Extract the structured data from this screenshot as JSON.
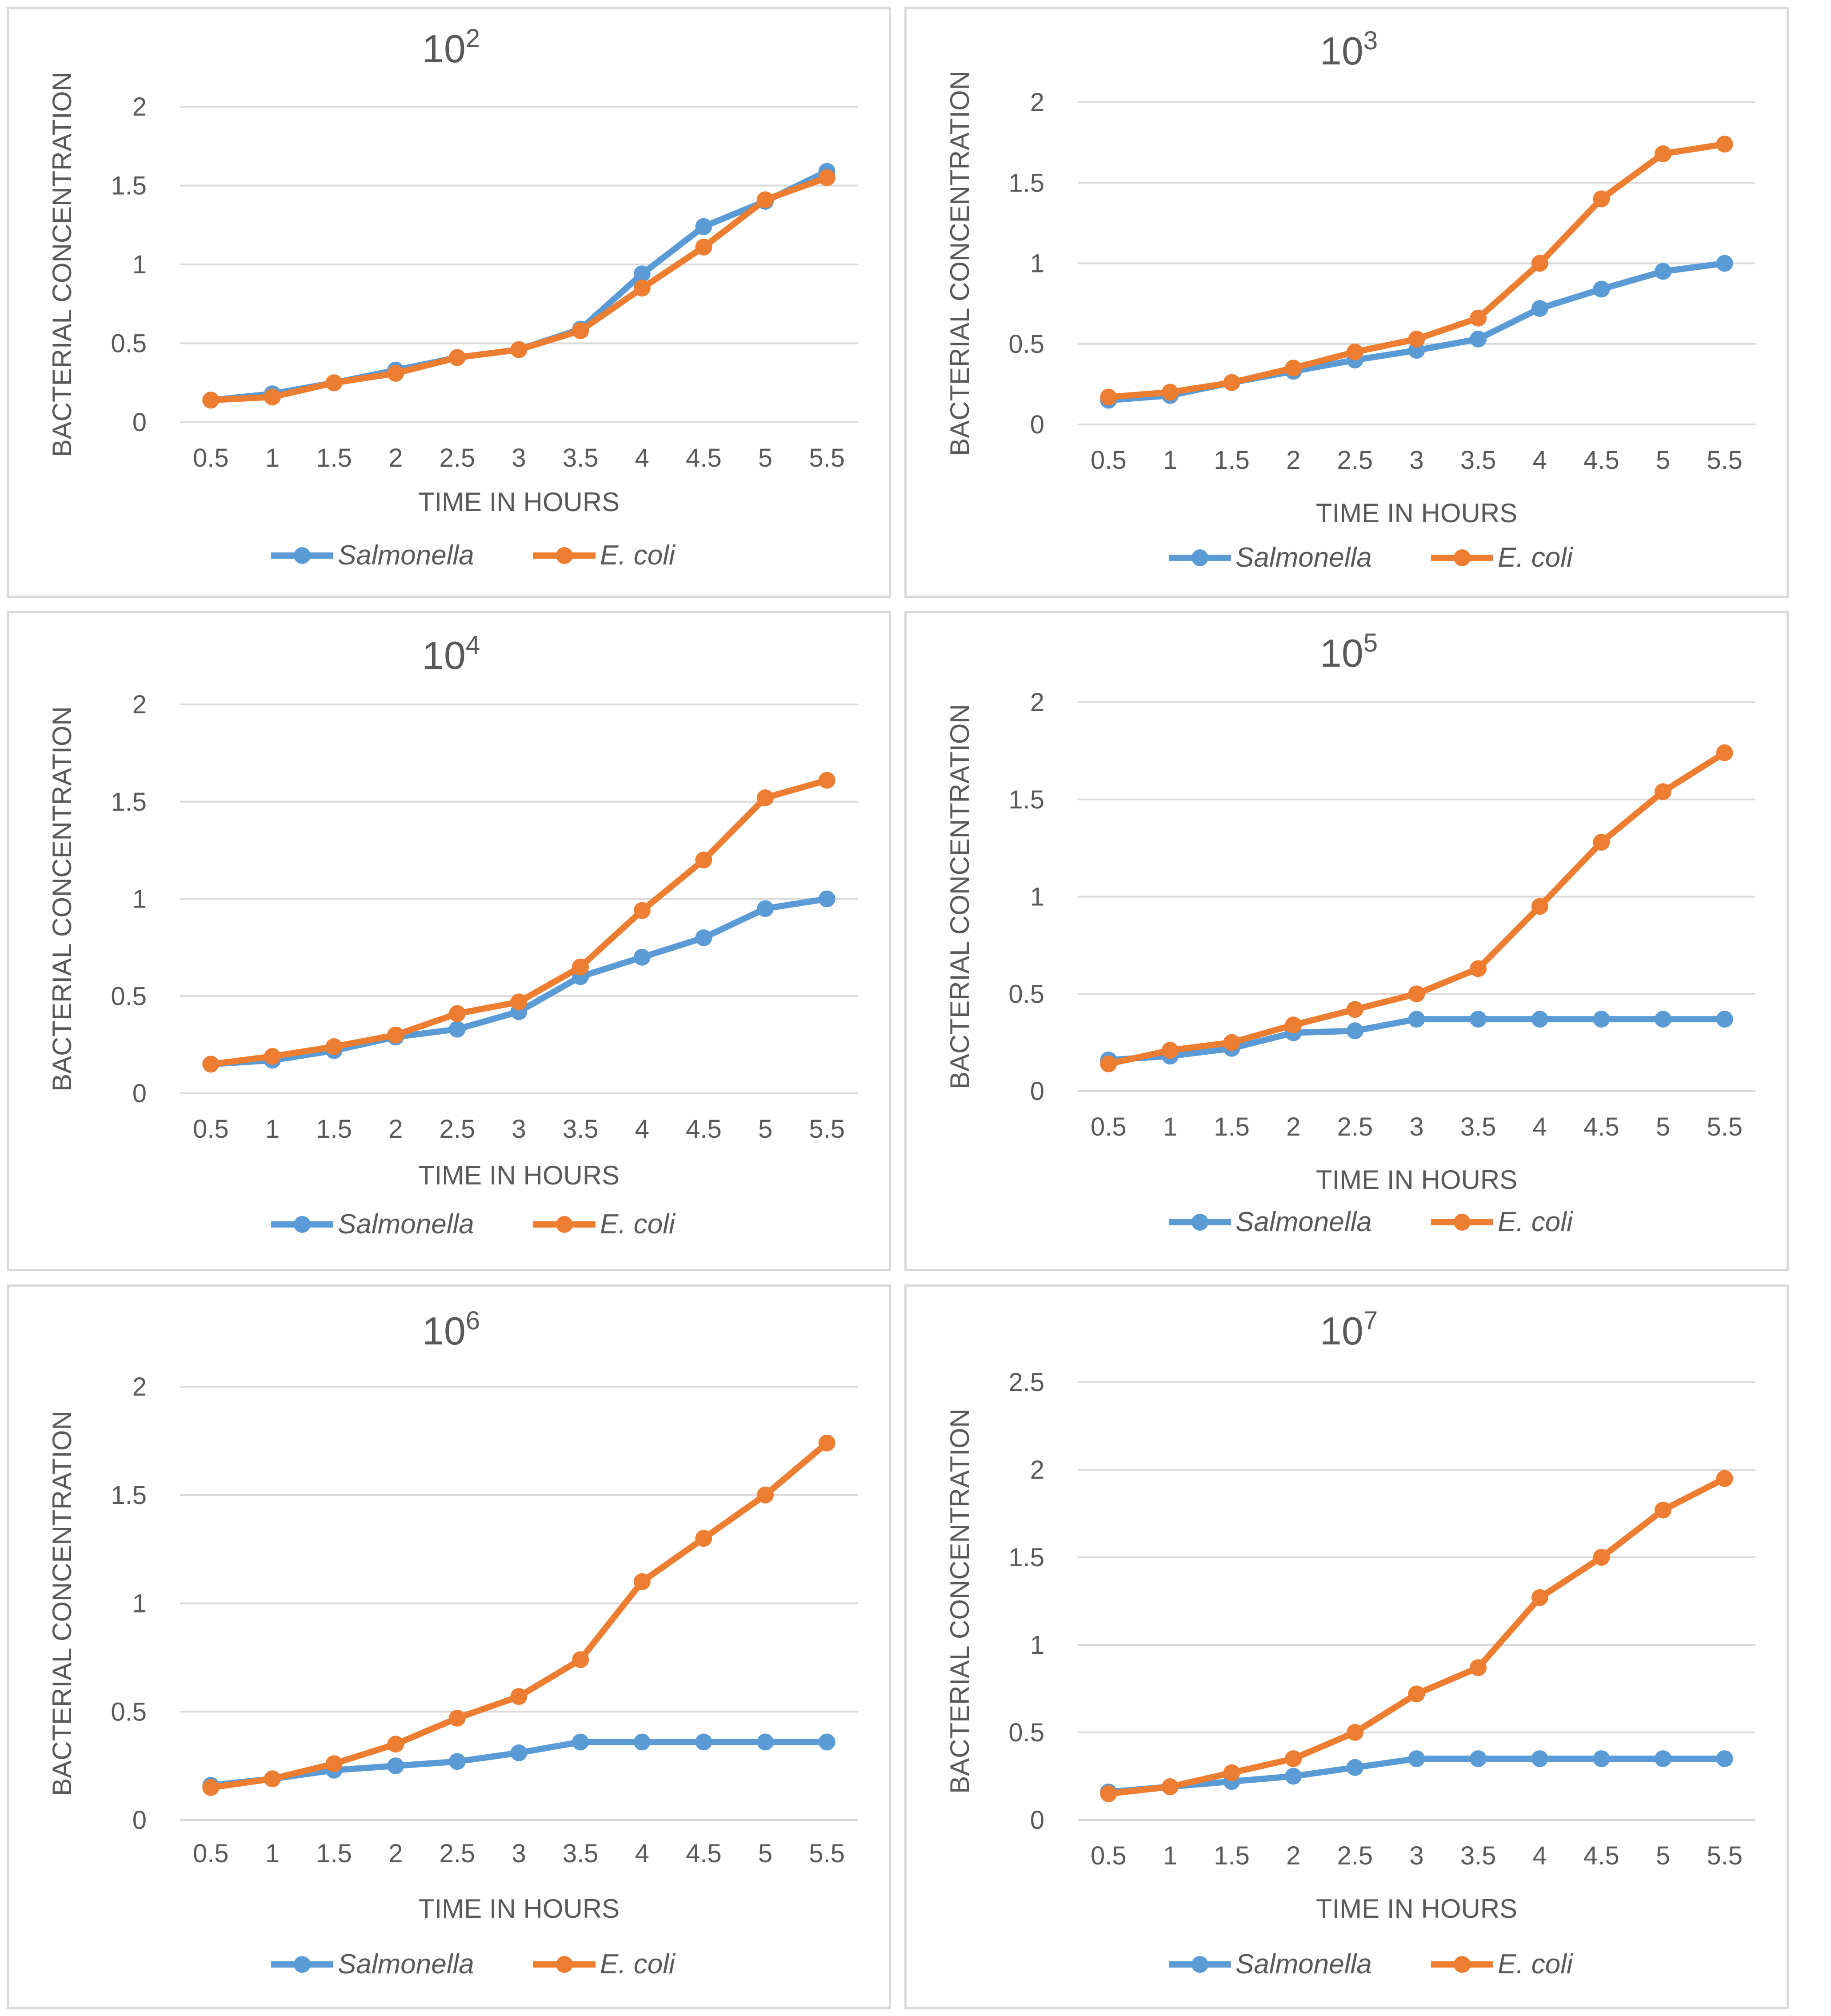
{
  "chart_data": [
    {
      "type": "line",
      "title": "10",
      "title_exponent": "2",
      "xlabel": "TIME IN HOURS",
      "ylabel": "BACTERIAL CONCENTRATION",
      "ylim": [
        0,
        2
      ],
      "yticks": [
        "0",
        "0.5",
        "1",
        "1.5",
        "2"
      ],
      "grid": true,
      "legend": "bottom",
      "categories": [
        "0.5",
        "1",
        "1.5",
        "2",
        "2.5",
        "3",
        "3.5",
        "4",
        "4.5",
        "5",
        "5.5"
      ],
      "series": [
        {
          "name": "Salmonella",
          "color": "#5b9bd5",
          "values": [
            0.14,
            0.18,
            0.25,
            0.33,
            0.41,
            0.46,
            0.59,
            0.94,
            1.24,
            1.4,
            1.59
          ]
        },
        {
          "name": "E. coli",
          "color": "#ed7d31",
          "values": [
            0.14,
            0.16,
            0.25,
            0.31,
            0.41,
            0.46,
            0.58,
            0.85,
            1.11,
            1.41,
            1.55
          ]
        }
      ]
    },
    {
      "type": "line",
      "title": "10",
      "title_exponent": "3",
      "xlabel": "TIME IN HOURS",
      "ylabel": "BACTERIAL CONCENTRATION",
      "ylim": [
        0,
        2
      ],
      "yticks": [
        "0",
        "0.5",
        "1",
        "1.5",
        "2"
      ],
      "grid": true,
      "legend": "bottom",
      "categories": [
        "0.5",
        "1",
        "1.5",
        "2",
        "2.5",
        "3",
        "3.5",
        "4",
        "4.5",
        "5",
        "5.5"
      ],
      "series": [
        {
          "name": "Salmonella",
          "color": "#5b9bd5",
          "values": [
            0.15,
            0.18,
            0.26,
            0.33,
            0.4,
            0.46,
            0.53,
            0.72,
            0.84,
            0.95,
            1.0
          ]
        },
        {
          "name": "E. coli",
          "color": "#ed7d31",
          "values": [
            0.17,
            0.2,
            0.26,
            0.35,
            0.45,
            0.53,
            0.66,
            1.0,
            1.4,
            1.68,
            1.74
          ]
        }
      ]
    },
    {
      "type": "line",
      "title": "10",
      "title_exponent": "4",
      "xlabel": "TIME IN HOURS",
      "ylabel": "BACTERIAL CONCENTRATION",
      "ylim": [
        0,
        2
      ],
      "yticks": [
        "0",
        "0.5",
        "1",
        "1.5",
        "2"
      ],
      "grid": true,
      "legend": "bottom",
      "categories": [
        "0.5",
        "1",
        "1.5",
        "2",
        "2.5",
        "3",
        "3.5",
        "4",
        "4.5",
        "5",
        "5.5"
      ],
      "series": [
        {
          "name": "Salmonella",
          "color": "#5b9bd5",
          "values": [
            0.15,
            0.17,
            0.22,
            0.29,
            0.33,
            0.42,
            0.6,
            0.7,
            0.8,
            0.95,
            1.0
          ]
        },
        {
          "name": "E. coli",
          "color": "#ed7d31",
          "values": [
            0.15,
            0.19,
            0.24,
            0.3,
            0.41,
            0.47,
            0.65,
            0.94,
            1.2,
            1.52,
            1.61
          ]
        }
      ]
    },
    {
      "type": "line",
      "title": "10",
      "title_exponent": "5",
      "xlabel": "TIME IN HOURS",
      "ylabel": "BACTERIAL CONCENTRATION",
      "ylim": [
        0,
        2
      ],
      "yticks": [
        "0",
        "0.5",
        "1",
        "1.5",
        "2"
      ],
      "grid": true,
      "legend": "bottom",
      "categories": [
        "0.5",
        "1",
        "1.5",
        "2",
        "2.5",
        "3",
        "3.5",
        "4",
        "4.5",
        "5",
        "5.5"
      ],
      "series": [
        {
          "name": "Salmonella",
          "color": "#5b9bd5",
          "values": [
            0.16,
            0.18,
            0.22,
            0.3,
            0.31,
            0.37,
            0.37,
            0.37,
            0.37,
            0.37,
            0.37
          ]
        },
        {
          "name": "E. coli",
          "color": "#ed7d31",
          "values": [
            0.14,
            0.21,
            0.25,
            0.34,
            0.42,
            0.5,
            0.63,
            0.95,
            1.28,
            1.54,
            1.74
          ]
        }
      ]
    },
    {
      "type": "line",
      "title": "10",
      "title_exponent": "6",
      "xlabel": "TIME IN HOURS",
      "ylabel": "BACTERIAL CONCENTRATION",
      "ylim": [
        0,
        2
      ],
      "yticks": [
        "0",
        "0.5",
        "1",
        "1.5",
        "2"
      ],
      "grid": true,
      "legend": "bottom",
      "categories": [
        "0.5",
        "1",
        "1.5",
        "2",
        "2.5",
        "3",
        "3.5",
        "4",
        "4.5",
        "5",
        "5.5"
      ],
      "series": [
        {
          "name": "Salmonella",
          "color": "#5b9bd5",
          "values": [
            0.16,
            0.19,
            0.23,
            0.25,
            0.27,
            0.31,
            0.36,
            0.36,
            0.36,
            0.36,
            0.36
          ]
        },
        {
          "name": "E. coli",
          "color": "#ed7d31",
          "values": [
            0.15,
            0.19,
            0.26,
            0.35,
            0.47,
            0.57,
            0.74,
            1.1,
            1.3,
            1.5,
            1.74
          ]
        }
      ]
    },
    {
      "type": "line",
      "title": "10",
      "title_exponent": "7",
      "xlabel": "TIME IN HOURS",
      "ylabel": "BACTERIAL CONCENTRATION",
      "ylim": [
        0,
        2.5
      ],
      "yticks": [
        "0",
        "0.5",
        "1",
        "1.5",
        "2",
        "2.5"
      ],
      "grid": true,
      "legend": "bottom",
      "categories": [
        "0.5",
        "1",
        "1.5",
        "2",
        "2.5",
        "3",
        "3.5",
        "4",
        "4.5",
        "5",
        "5.5"
      ],
      "series": [
        {
          "name": "Salmonella",
          "color": "#5b9bd5",
          "values": [
            0.16,
            0.19,
            0.22,
            0.25,
            0.3,
            0.35,
            0.35,
            0.35,
            0.35,
            0.35,
            0.35
          ]
        },
        {
          "name": "E. coli",
          "color": "#ed7d31",
          "values": [
            0.15,
            0.19,
            0.27,
            0.35,
            0.5,
            0.72,
            0.87,
            1.27,
            1.5,
            1.77,
            1.95
          ]
        }
      ]
    }
  ],
  "colors": {
    "salmonella": "#5b9bd5",
    "ecoli": "#ed7d31",
    "grid": "#d9d9d9",
    "text": "#595959",
    "panel_border": "#d9d9d9"
  }
}
